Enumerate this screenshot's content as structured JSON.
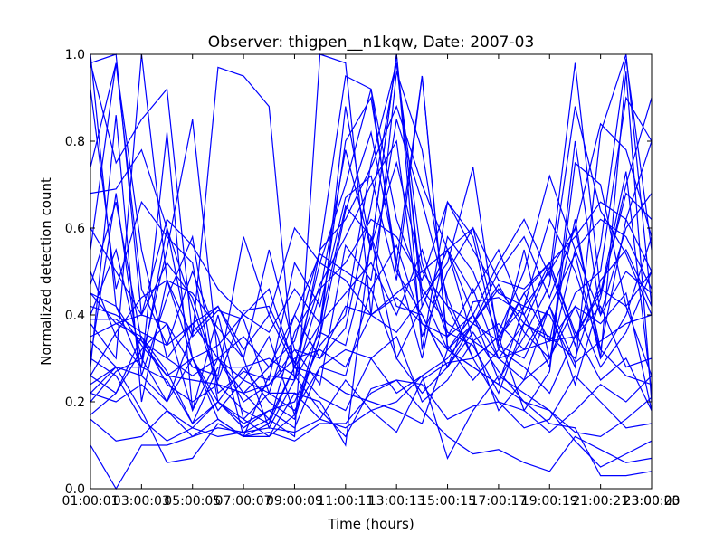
{
  "chart_data": {
    "type": "line",
    "title": "Observer: thigpen__n1kqw, Date: 2007-03",
    "xlabel": "Time (hours)",
    "ylabel": "Normalized detection count",
    "x": [
      "01:00:00",
      "02:00:00",
      "03:00:00",
      "04:00:00",
      "05:00:00",
      "06:00:00",
      "07:00:00",
      "08:00:00",
      "09:00:00",
      "10:00:00",
      "11:00:00",
      "12:00:00",
      "13:00:00",
      "14:00:00",
      "15:00:00",
      "16:00:00",
      "17:00:00",
      "18:00:00",
      "19:00:00",
      "20:00:00",
      "21:00:00",
      "22:00:00",
      "23:00:00"
    ],
    "xticks": [
      "01:00:01",
      "03:00:03",
      "05:00:05",
      "07:00:07",
      "09:00:09",
      "11:00:11",
      "13:00:13",
      "15:00:15",
      "17:00:17",
      "19:00:19",
      "21:00:21",
      "23:00:23"
    ],
    "xticks_end": "23:00:00",
    "yticks": [
      "0.0",
      "0.2",
      "0.4",
      "0.6",
      "0.8",
      "1.0"
    ],
    "ylim": [
      0,
      1
    ],
    "grid": false,
    "color": "#0000ff",
    "series": [
      {
        "values": [
          1.0,
          0.42,
          0.28,
          0.25,
          0.15,
          0.2,
          0.16,
          0.12,
          0.17,
          0.35,
          0.88,
          0.55,
          1.0,
          0.42,
          0.55,
          0.4,
          0.52,
          0.62,
          0.49,
          0.98,
          0.45,
          0.73,
          0.22
        ]
      },
      {
        "values": [
          0.55,
          0.98,
          0.46,
          0.33,
          0.5,
          0.35,
          0.12,
          0.15,
          0.28,
          0.52,
          0.7,
          0.92,
          0.62,
          0.46,
          0.38,
          0.34,
          0.3,
          0.38,
          0.51,
          0.33,
          0.56,
          0.99,
          0.55
        ]
      },
      {
        "values": [
          0.98,
          1.0,
          0.4,
          0.38,
          0.18,
          0.3,
          0.22,
          0.16,
          0.12,
          1.0,
          0.98,
          0.4,
          0.96,
          0.78,
          0.42,
          0.3,
          0.35,
          0.42,
          0.4,
          0.28,
          0.82,
          1.0,
          0.42
        ]
      },
      {
        "values": [
          0.38,
          0.3,
          1.0,
          0.48,
          0.45,
          0.37,
          0.3,
          0.14,
          0.25,
          0.45,
          0.78,
          0.55,
          1.0,
          0.32,
          0.66,
          0.55,
          0.45,
          0.42,
          0.5,
          0.6,
          0.32,
          0.62,
          0.5
        ]
      },
      {
        "values": [
          0.22,
          0.28,
          0.28,
          0.82,
          0.18,
          0.4,
          0.16,
          0.22,
          0.4,
          0.3,
          0.37,
          0.65,
          0.98,
          0.45,
          0.32,
          0.38,
          0.47,
          0.36,
          0.3,
          0.42,
          0.38,
          0.45,
          0.18
        ]
      },
      {
        "values": [
          0.2,
          0.27,
          0.3,
          0.55,
          0.85,
          0.3,
          0.25,
          0.35,
          0.17,
          0.38,
          0.8,
          0.9,
          0.52,
          0.3,
          0.58,
          0.5,
          0.35,
          0.45,
          0.34,
          0.62,
          0.3,
          0.96,
          0.2
        ]
      },
      {
        "values": [
          0.3,
          0.68,
          0.26,
          0.44,
          0.58,
          0.22,
          0.27,
          0.25,
          0.52,
          0.42,
          0.67,
          0.72,
          0.48,
          0.95,
          0.33,
          0.25,
          0.32,
          0.55,
          0.3,
          0.55,
          0.62,
          0.58,
          0.46
        ]
      },
      {
        "values": [
          0.42,
          0.4,
          0.36,
          0.33,
          0.38,
          0.3,
          0.2,
          0.24,
          0.32,
          0.24,
          0.56,
          0.48,
          0.85,
          0.66,
          0.44,
          0.3,
          0.35,
          0.18,
          0.27,
          0.75,
          0.7,
          0.42,
          0.26
        ]
      },
      {
        "values": [
          0.5,
          0.35,
          0.28,
          0.6,
          0.3,
          0.33,
          0.4,
          0.46,
          0.28,
          0.38,
          0.65,
          0.58,
          0.42,
          0.4,
          0.28,
          0.43,
          0.44,
          0.4,
          0.52,
          0.35,
          0.45,
          0.68,
          0.62
        ]
      },
      {
        "values": [
          0.17,
          0.22,
          0.35,
          0.27,
          0.15,
          0.28,
          0.28,
          0.2,
          0.16,
          0.35,
          0.64,
          0.82,
          0.52,
          0.95,
          0.32,
          0.4,
          0.25,
          0.35,
          0.47,
          0.88,
          0.64,
          0.54,
          0.4
        ]
      },
      {
        "values": [
          0.35,
          0.38,
          0.4,
          0.52,
          0.44,
          0.25,
          0.41,
          0.42,
          0.29,
          0.47,
          0.58,
          0.7,
          0.8,
          0.35,
          0.5,
          0.6,
          0.36,
          0.5,
          0.72,
          0.55,
          0.4,
          0.6,
          0.68
        ]
      },
      {
        "values": [
          0.45,
          0.42,
          0.33,
          0.26,
          0.3,
          0.2,
          0.14,
          0.18,
          0.2,
          0.33,
          0.4,
          0.75,
          0.98,
          0.52,
          0.35,
          0.46,
          0.3,
          0.25,
          0.3,
          0.45,
          0.5,
          0.9,
          0.8
        ]
      },
      {
        "values": [
          0.68,
          0.69,
          0.78,
          0.6,
          0.42,
          0.24,
          0.18,
          0.15,
          0.36,
          0.46,
          0.52,
          0.62,
          0.58,
          0.48,
          0.66,
          0.58,
          0.32,
          0.28,
          0.22,
          0.35,
          0.46,
          0.42,
          0.5
        ]
      },
      {
        "values": [
          0.92,
          0.46,
          0.66,
          0.58,
          0.52,
          0.2,
          0.15,
          0.18,
          0.14,
          0.28,
          0.26,
          0.46,
          0.56,
          0.38,
          0.32,
          0.28,
          0.24,
          0.42,
          0.62,
          0.5,
          0.32,
          0.26,
          0.24
        ]
      },
      {
        "values": [
          0.74,
          0.98,
          0.55,
          0.3,
          0.38,
          0.42,
          0.3,
          0.55,
          0.32,
          0.3,
          0.42,
          0.4,
          0.45,
          0.5,
          0.42,
          0.38,
          0.46,
          0.38,
          0.35,
          0.3,
          0.48,
          0.55,
          0.42
        ]
      },
      {
        "values": [
          0.28,
          0.86,
          0.2,
          0.48,
          0.3,
          0.16,
          0.12,
          0.26,
          0.25,
          0.36,
          0.33,
          0.56,
          0.75,
          0.5,
          0.55,
          0.34,
          0.18,
          0.25,
          0.42,
          0.24,
          0.44,
          0.7,
          0.9
        ]
      },
      {
        "values": [
          0.26,
          0.36,
          0.44,
          0.48,
          0.35,
          0.41,
          0.39,
          0.22,
          0.22,
          0.2,
          0.1,
          0.58,
          0.3,
          0.42,
          0.55,
          0.45,
          0.55,
          0.4,
          0.28,
          0.8,
          0.4,
          0.5,
          0.45
        ]
      },
      {
        "values": [
          0.1,
          0.0,
          0.1,
          0.1,
          0.12,
          0.16,
          0.12,
          0.13,
          0.11,
          0.15,
          0.15,
          0.22,
          0.25,
          0.24,
          0.16,
          0.19,
          0.2,
          0.18,
          0.13,
          0.18,
          0.24,
          0.2,
          0.26
        ]
      },
      {
        "values": [
          0.16,
          0.11,
          0.12,
          0.18,
          0.12,
          0.14,
          0.13,
          0.14,
          0.13,
          0.16,
          0.25,
          0.18,
          0.2,
          0.26,
          0.07,
          0.18,
          0.26,
          0.22,
          0.18,
          0.13,
          0.12,
          0.16,
          0.21
        ]
      },
      {
        "values": [
          0.24,
          0.28,
          0.18,
          0.06,
          0.07,
          0.15,
          0.12,
          0.12,
          0.22,
          0.16,
          0.14,
          0.18,
          0.13,
          0.25,
          0.29,
          0.3,
          0.2,
          0.14,
          0.16,
          0.26,
          0.2,
          0.14,
          0.15
        ]
      },
      {
        "values": [
          0.3,
          0.26,
          0.16,
          0.11,
          0.14,
          0.2,
          0.28,
          0.3,
          0.26,
          0.18,
          0.12,
          0.23,
          0.25,
          0.18,
          0.12,
          0.08,
          0.09,
          0.06,
          0.04,
          0.12,
          0.09,
          0.06,
          0.07
        ]
      },
      {
        "values": [
          0.22,
          0.2,
          0.24,
          0.18,
          0.14,
          0.12,
          0.13,
          0.16,
          0.28,
          0.26,
          0.22,
          0.2,
          0.18,
          0.15,
          0.32,
          0.28,
          0.24,
          0.2,
          0.18,
          0.11,
          0.05,
          0.08,
          0.11
        ]
      },
      {
        "values": [
          0.45,
          0.38,
          0.35,
          0.24,
          0.2,
          0.24,
          0.22,
          0.28,
          0.4,
          0.54,
          0.5,
          0.46,
          0.3,
          0.22,
          0.28,
          0.36,
          0.27,
          0.2,
          0.15,
          0.14,
          0.03,
          0.03,
          0.04
        ]
      },
      {
        "values": [
          0.6,
          0.5,
          0.4,
          0.62,
          0.56,
          0.46,
          0.4,
          0.36,
          0.46,
          0.38,
          0.45,
          0.52,
          0.4,
          0.55,
          0.36,
          0.33,
          0.22,
          0.38,
          0.34,
          0.42,
          0.28,
          0.36,
          0.5
        ]
      },
      {
        "values": [
          0.39,
          0.39,
          0.34,
          0.26,
          0.25,
          0.24,
          0.22,
          0.24,
          0.3,
          0.32,
          0.28,
          0.4,
          0.44,
          0.38,
          0.35,
          0.4,
          0.3,
          0.32,
          0.42,
          0.29,
          0.34,
          0.38,
          0.4
        ]
      },
      {
        "values": [
          0.47,
          0.66,
          0.34,
          0.3,
          0.26,
          0.3,
          0.35,
          0.28,
          0.34,
          0.55,
          0.62,
          0.74,
          0.88,
          0.7,
          0.55,
          0.6,
          0.48,
          0.46,
          0.52,
          0.58,
          0.66,
          0.62,
          0.8
        ]
      },
      {
        "values": [
          0.4,
          0.55,
          0.3,
          0.2,
          0.36,
          0.42,
          0.32,
          0.4,
          0.6,
          0.52,
          0.48,
          0.4,
          0.36,
          0.44,
          0.52,
          0.74,
          0.33,
          0.3,
          0.42,
          0.54,
          0.3,
          0.4,
          0.58
        ]
      },
      {
        "values": [
          0.34,
          0.28,
          0.26,
          0.2,
          0.3,
          0.18,
          0.25,
          0.22,
          0.18,
          0.28,
          0.32,
          0.3,
          0.22,
          0.26,
          0.3,
          0.38,
          0.34,
          0.45,
          0.52,
          0.36,
          0.25,
          0.3,
          0.18
        ]
      },
      {
        "values": [
          0.98,
          0.75,
          0.85,
          0.92,
          0.35,
          0.97,
          0.95,
          0.88,
          0.25,
          0.55,
          0.95,
          0.92,
          0.5,
          0.4,
          0.28,
          0.38,
          0.5,
          0.58,
          0.44,
          0.6,
          0.84,
          0.78,
          0.58
        ]
      },
      {
        "values": [
          0.26,
          0.22,
          0.32,
          0.38,
          0.28,
          0.26,
          0.58,
          0.4,
          0.28,
          0.21,
          0.18,
          0.3,
          0.35,
          0.2,
          0.25,
          0.34,
          0.38,
          0.32,
          0.34,
          0.35,
          0.42,
          0.28,
          0.3
        ]
      }
    ]
  }
}
